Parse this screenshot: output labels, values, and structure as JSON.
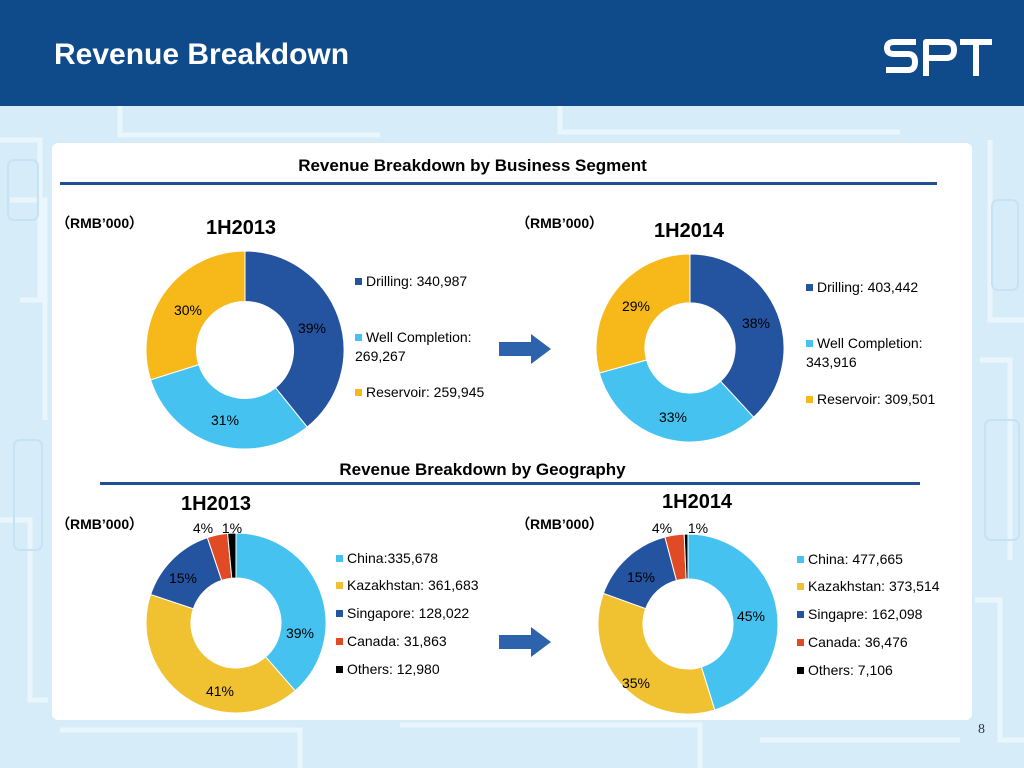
{
  "header": {
    "title": "Revenue Breakdown",
    "logo_text": "SPT"
  },
  "colors": {
    "header_bg": "#0f4a8a",
    "drilling": "#2453a0",
    "well": "#45c2f0",
    "reservoir": "#f7b91a",
    "china": "#45c2f0",
    "kazakhstan": "#f0c232",
    "singapore": "#2453a0",
    "canada": "#e04a25",
    "others": "#000000"
  },
  "sections": {
    "business": {
      "title": "Revenue Breakdown by Business Segment"
    },
    "geography": {
      "title": "Revenue Breakdown by Geography"
    }
  },
  "unit_label": "（RMB’000）",
  "page_number": "8",
  "chart_data": [
    {
      "type": "pie",
      "title": "1H2013",
      "group": "business",
      "categories": [
        "Drilling",
        "Well Completion",
        "Reservoir"
      ],
      "values": [
        340987,
        269267,
        259945
      ],
      "percent_labels": [
        "39%",
        "31%",
        "30%"
      ],
      "legend": [
        "Drilling: 340,987",
        "Well Completion: 269,267",
        "Reservoir: 259,945"
      ],
      "colors": [
        "#2453a0",
        "#45c2f0",
        "#f7b91a"
      ]
    },
    {
      "type": "pie",
      "title": "1H2014",
      "group": "business",
      "categories": [
        "Drilling",
        "Well Completion",
        "Reservoir"
      ],
      "values": [
        403442,
        343916,
        309501
      ],
      "percent_labels": [
        "38%",
        "33%",
        "29%"
      ],
      "legend": [
        "Drilling: 403,442",
        "Well Completion: 343,916",
        "Reservoir: 309,501"
      ],
      "colors": [
        "#2453a0",
        "#45c2f0",
        "#f7b91a"
      ]
    },
    {
      "type": "pie",
      "title": "1H2013",
      "group": "geography",
      "categories": [
        "China",
        "Kazakhstan",
        "Singapore",
        "Canada",
        "Others"
      ],
      "values": [
        335678,
        361683,
        128022,
        31863,
        12980
      ],
      "percent_labels": [
        "39%",
        "41%",
        "15%",
        "4%",
        "1%"
      ],
      "legend": [
        "China:335,678",
        "Kazakhstan: 361,683",
        "Singapore: 128,022",
        "Canada: 31,863",
        "Others: 12,980"
      ],
      "colors": [
        "#45c2f0",
        "#f0c232",
        "#2453a0",
        "#e04a25",
        "#000000"
      ]
    },
    {
      "type": "pie",
      "title": "1H2014",
      "group": "geography",
      "categories": [
        "China",
        "Kazakhstan",
        "Singapore",
        "Canada",
        "Others"
      ],
      "values": [
        477665,
        373514,
        162098,
        36476,
        7106
      ],
      "percent_labels": [
        "45%",
        "35%",
        "15%",
        "4%",
        "1%"
      ],
      "legend": [
        "China: 477,665",
        "Kazakhstan: 373,514",
        "Singapre: 162,098",
        "Canada: 36,476",
        "Others: 7,106"
      ],
      "colors": [
        "#45c2f0",
        "#f0c232",
        "#2453a0",
        "#e04a25",
        "#000000"
      ]
    }
  ]
}
